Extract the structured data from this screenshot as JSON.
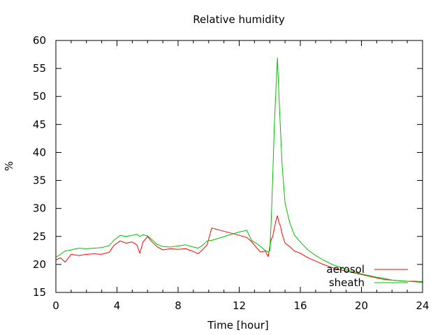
{
  "chart_data": {
    "type": "line",
    "title": "Relative humidity",
    "xlabel": "Time [hour]",
    "ylabel": "%",
    "xlim": [
      0,
      24
    ],
    "ylim": [
      15,
      60
    ],
    "xticks": [
      0,
      4,
      8,
      12,
      16,
      20,
      24
    ],
    "yticks": [
      15,
      20,
      25,
      30,
      35,
      40,
      45,
      50,
      55,
      60
    ],
    "grid": false,
    "legend_position": "bottom-right",
    "series": [
      {
        "name": "aerosol",
        "color": "#ff0000",
        "x": [
          0,
          0.3,
          0.6,
          1,
          1.5,
          2,
          2.5,
          3,
          3.5,
          3.8,
          4.2,
          4.6,
          5,
          5.3,
          5.5,
          5.7,
          6,
          6.3,
          6.6,
          7,
          7.5,
          8,
          8.5,
          9,
          9.3,
          9.6,
          9.9,
          10.2,
          12.0,
          12.5,
          12.8,
          13.1,
          13.4,
          13.7,
          13.9,
          14.0,
          14.1,
          14.2,
          14.3,
          14.4,
          14.5,
          14.6,
          14.7,
          14.8,
          15,
          15.3,
          15.6,
          16,
          16.5,
          17,
          17.5,
          18,
          18.5,
          19,
          19.5,
          20,
          20.5,
          21,
          21.5,
          22,
          22.5,
          23,
          23.5,
          24
        ],
        "y": [
          20.8,
          21.2,
          20.4,
          21.8,
          21.6,
          21.8,
          21.9,
          21.8,
          22.2,
          23.4,
          24.2,
          23.8,
          24.0,
          23.5,
          22.0,
          24.0,
          25.0,
          24.0,
          23.2,
          22.6,
          22.8,
          22.7,
          22.8,
          22.3,
          21.9,
          22.6,
          23.5,
          26.5,
          25.2,
          24.8,
          24.1,
          23.1,
          22.2,
          22.4,
          21.4,
          23.2,
          24.5,
          25.0,
          26.5,
          27.8,
          28.7,
          27.5,
          26.8,
          25.5,
          23.8,
          23.2,
          22.4,
          22.0,
          21.2,
          20.6,
          20.0,
          19.5,
          19.1,
          18.8,
          18.5,
          18.2,
          17.9,
          17.6,
          17.3,
          17.2,
          17.1,
          17.0,
          17.0,
          16.9
        ]
      },
      {
        "name": "sheath",
        "color": "#00c000",
        "x": [
          0,
          0.3,
          0.6,
          1,
          1.5,
          2,
          2.5,
          3,
          3.5,
          3.8,
          4.2,
          4.6,
          5,
          5.3,
          5.5,
          5.7,
          6,
          6.3,
          6.6,
          7,
          7.5,
          8,
          8.5,
          9,
          9.3,
          9.6,
          9.9,
          10.2,
          12.0,
          12.5,
          12.8,
          13.1,
          13.4,
          13.7,
          13.9,
          14.0,
          14.1,
          14.2,
          14.3,
          14.4,
          14.5,
          14.6,
          14.7,
          14.8,
          15,
          15.3,
          15.6,
          16,
          16.5,
          17,
          17.5,
          18,
          18.5,
          19,
          19.5,
          20,
          20.5,
          21,
          21.5,
          22,
          22.5,
          23,
          23.5,
          24
        ],
        "y": [
          21.3,
          21.8,
          22.4,
          22.6,
          22.9,
          22.8,
          22.9,
          23.0,
          23.4,
          24.3,
          25.2,
          25.0,
          25.2,
          25.4,
          25.0,
          25.3,
          25.1,
          24.4,
          23.6,
          23.2,
          23.1,
          23.3,
          23.5,
          23.1,
          22.9,
          23.4,
          24.2,
          24.3,
          25.8,
          26.1,
          24.3,
          23.8,
          23.2,
          22.5,
          22.2,
          22.5,
          28.0,
          36.0,
          45.0,
          51.0,
          56.9,
          50.0,
          44.0,
          38.0,
          31.0,
          27.5,
          25.3,
          24.0,
          22.6,
          21.6,
          20.8,
          20.1,
          19.6,
          19.1,
          18.7,
          18.3,
          18.0,
          17.7,
          17.5,
          17.2,
          17.1,
          17.0,
          16.9,
          16.8
        ]
      }
    ]
  }
}
